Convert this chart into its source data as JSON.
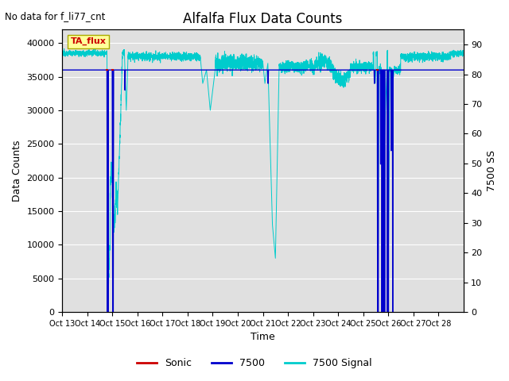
{
  "title": "Alfalfa Flux Data Counts",
  "subtitle": "No data for f_li77_cnt",
  "xlabel": "Time",
  "ylabel_left": "Data Counts",
  "ylabel_right": "7500 SS",
  "annotation": "TA_flux",
  "xlim": [
    0,
    16
  ],
  "ylim_left": [
    0,
    42000
  ],
  "ylim_right": [
    0,
    95
  ],
  "xtick_labels": [
    "Oct 13",
    "Oct 14",
    "Oct 15",
    "Oct 16",
    "Oct 17",
    "Oct 18",
    "Oct 19",
    "Oct 20",
    "Oct 21",
    "Oct 22",
    "Oct 23",
    "Oct 24",
    "Oct 25",
    "Oct 26",
    "Oct 27",
    "Oct 28"
  ],
  "ytick_left": [
    0,
    5000,
    10000,
    15000,
    20000,
    25000,
    30000,
    35000,
    40000
  ],
  "ytick_right": [
    0,
    10,
    20,
    30,
    40,
    50,
    60,
    70,
    80,
    90
  ],
  "plot_bg_color": "#e0e0e0",
  "sonic_color": "#cc0000",
  "line7500_color": "#0000cc",
  "signal_color": "#00cccc",
  "legend_entries": [
    "Sonic",
    "7500",
    "7500 Signal"
  ],
  "line7500_value": 36000,
  "signal_base": 38500,
  "signal_noise": 200
}
